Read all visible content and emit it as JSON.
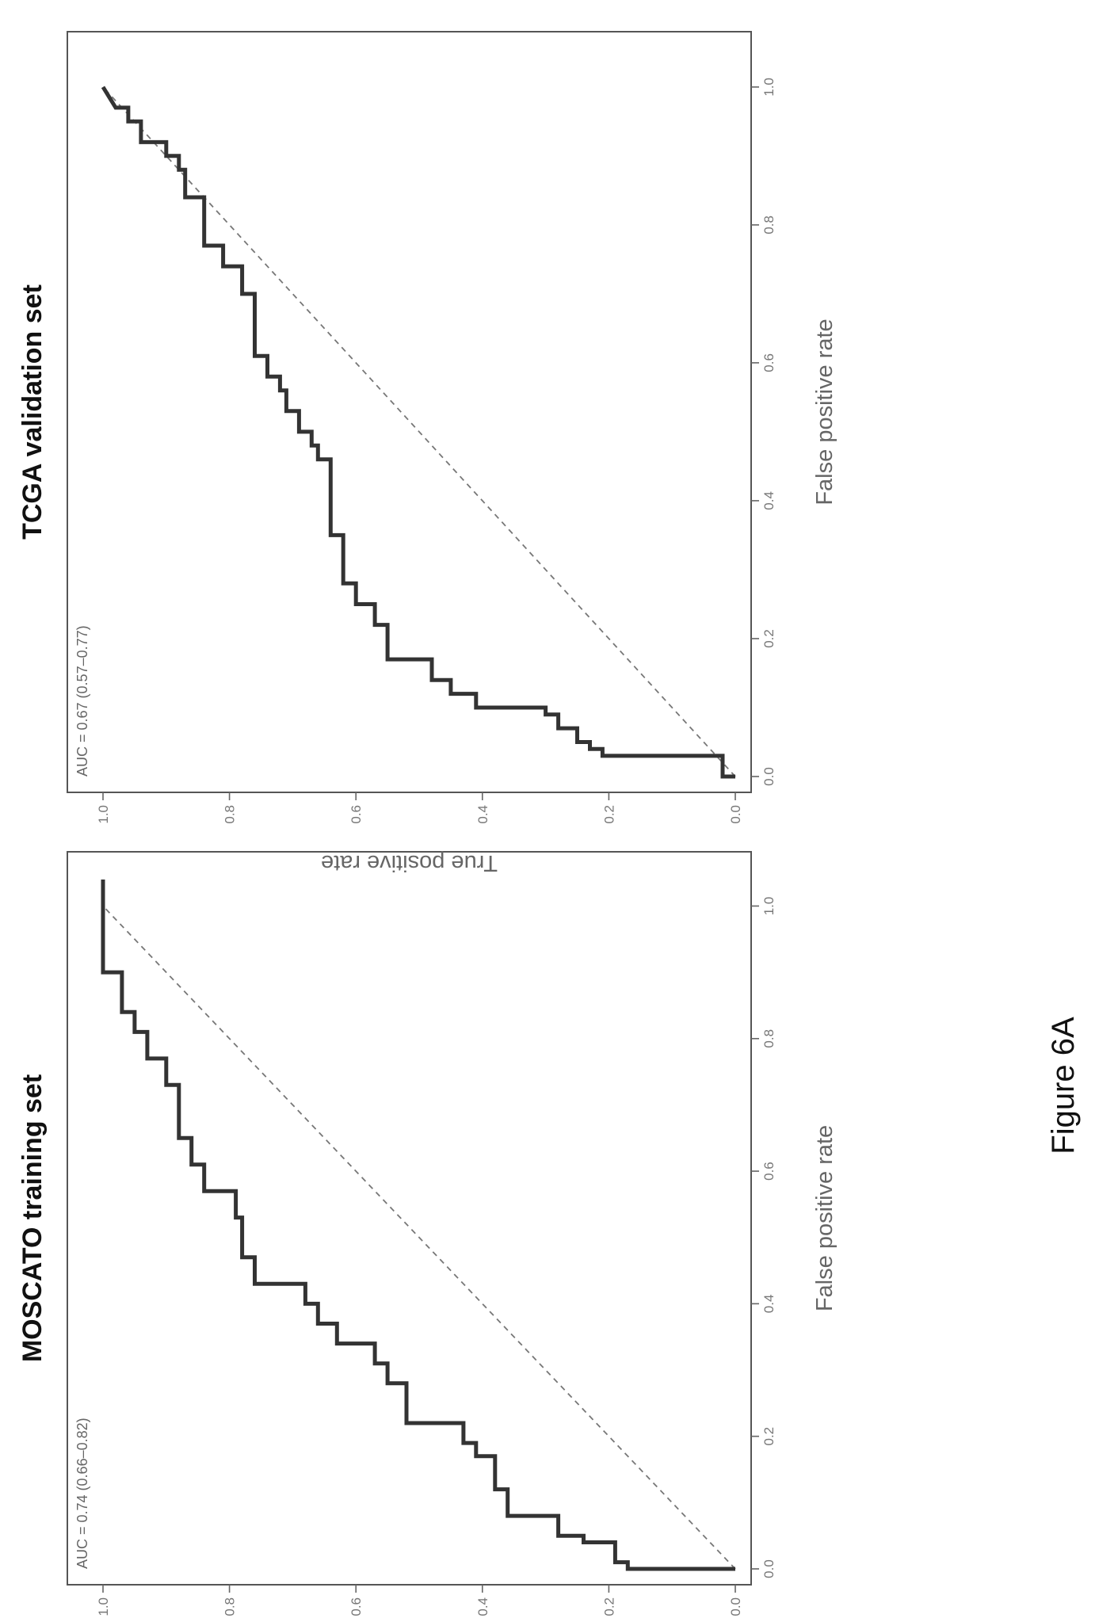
{
  "figure": {
    "caption": "Figure 6A"
  },
  "chart_data": [
    {
      "type": "line",
      "title": "MOSCATO training set",
      "xlabel": "False positive rate",
      "ylabel": "True positive rate",
      "annotation": "AUC = 0.74 (0.66–0.82)",
      "xlim": [
        0,
        1
      ],
      "ylim": [
        0,
        1
      ],
      "x_ticks": [
        "0.0",
        "0.2",
        "0.4",
        "0.6",
        "0.8",
        "1.0"
      ],
      "y_ticks": [
        "0.0",
        "0.2",
        "0.4",
        "0.6",
        "0.8",
        "1.0"
      ],
      "grid": false,
      "reference_line": {
        "x": [
          0,
          1
        ],
        "y": [
          0,
          1
        ],
        "style": "dashed"
      },
      "series": [
        {
          "x": [
            0.0,
            0.0,
            0.01,
            0.01,
            0.04,
            0.04,
            0.05,
            0.05,
            0.08,
            0.08,
            0.12,
            0.12,
            0.17,
            0.17,
            0.19,
            0.19,
            0.22,
            0.22,
            0.28,
            0.28,
            0.31,
            0.31,
            0.34,
            0.34,
            0.37,
            0.37,
            0.4,
            0.4,
            0.43,
            0.43,
            0.47,
            0.47,
            0.53,
            0.53,
            0.57,
            0.57,
            0.61,
            0.61,
            0.65,
            0.65,
            0.73,
            0.73,
            0.77,
            0.77,
            0.81,
            0.81,
            0.84,
            0.84,
            0.9,
            0.9,
            1.04
          ],
          "y": [
            0.0,
            0.17,
            0.17,
            0.19,
            0.19,
            0.24,
            0.24,
            0.28,
            0.28,
            0.36,
            0.36,
            0.38,
            0.38,
            0.41,
            0.41,
            0.43,
            0.43,
            0.52,
            0.52,
            0.55,
            0.55,
            0.57,
            0.57,
            0.63,
            0.63,
            0.66,
            0.66,
            0.68,
            0.68,
            0.76,
            0.76,
            0.78,
            0.78,
            0.79,
            0.79,
            0.84,
            0.84,
            0.86,
            0.86,
            0.88,
            0.88,
            0.9,
            0.9,
            0.93,
            0.93,
            0.95,
            0.95,
            0.97,
            0.97,
            1.0,
            1.0
          ]
        }
      ]
    },
    {
      "type": "line",
      "title": "TCGA validation set",
      "xlabel": "False positive rate",
      "ylabel": "True positive rate",
      "annotation": "AUC = 0.67 (0.57–0.77)",
      "xlim": [
        0,
        1
      ],
      "ylim": [
        0,
        1
      ],
      "x_ticks": [
        "0.0",
        "0.2",
        "0.4",
        "0.6",
        "0.8",
        "1.0"
      ],
      "y_ticks": [
        "0.0",
        "0.2",
        "0.4",
        "0.6",
        "0.8",
        "1.0"
      ],
      "grid": false,
      "reference_line": {
        "x": [
          0,
          1
        ],
        "y": [
          0,
          1
        ],
        "style": "dashed"
      },
      "series": [
        {
          "x": [
            0.0,
            0.0,
            0.03,
            0.03,
            0.04,
            0.04,
            0.05,
            0.05,
            0.07,
            0.07,
            0.09,
            0.09,
            0.1,
            0.1,
            0.12,
            0.12,
            0.14,
            0.14,
            0.17,
            0.17,
            0.22,
            0.22,
            0.25,
            0.25,
            0.28,
            0.28,
            0.35,
            0.35,
            0.46,
            0.46,
            0.48,
            0.48,
            0.5,
            0.5,
            0.53,
            0.53,
            0.56,
            0.56,
            0.58,
            0.58,
            0.61,
            0.61,
            0.7,
            0.7,
            0.74,
            0.74,
            0.77,
            0.77,
            0.84,
            0.84,
            0.88,
            0.88,
            0.9,
            0.9,
            0.92,
            0.92,
            0.95,
            0.95,
            0.97,
            0.97,
            1.0
          ],
          "y": [
            0.0,
            0.02,
            0.02,
            0.21,
            0.21,
            0.23,
            0.23,
            0.25,
            0.25,
            0.28,
            0.28,
            0.3,
            0.3,
            0.41,
            0.41,
            0.45,
            0.45,
            0.48,
            0.48,
            0.55,
            0.55,
            0.57,
            0.57,
            0.6,
            0.6,
            0.62,
            0.62,
            0.64,
            0.64,
            0.66,
            0.66,
            0.67,
            0.67,
            0.69,
            0.69,
            0.71,
            0.71,
            0.72,
            0.72,
            0.74,
            0.74,
            0.76,
            0.76,
            0.78,
            0.78,
            0.81,
            0.81,
            0.84,
            0.84,
            0.87,
            0.87,
            0.88,
            0.88,
            0.9,
            0.9,
            0.94,
            0.94,
            0.96,
            0.96,
            0.98,
            1.0
          ]
        }
      ]
    }
  ]
}
